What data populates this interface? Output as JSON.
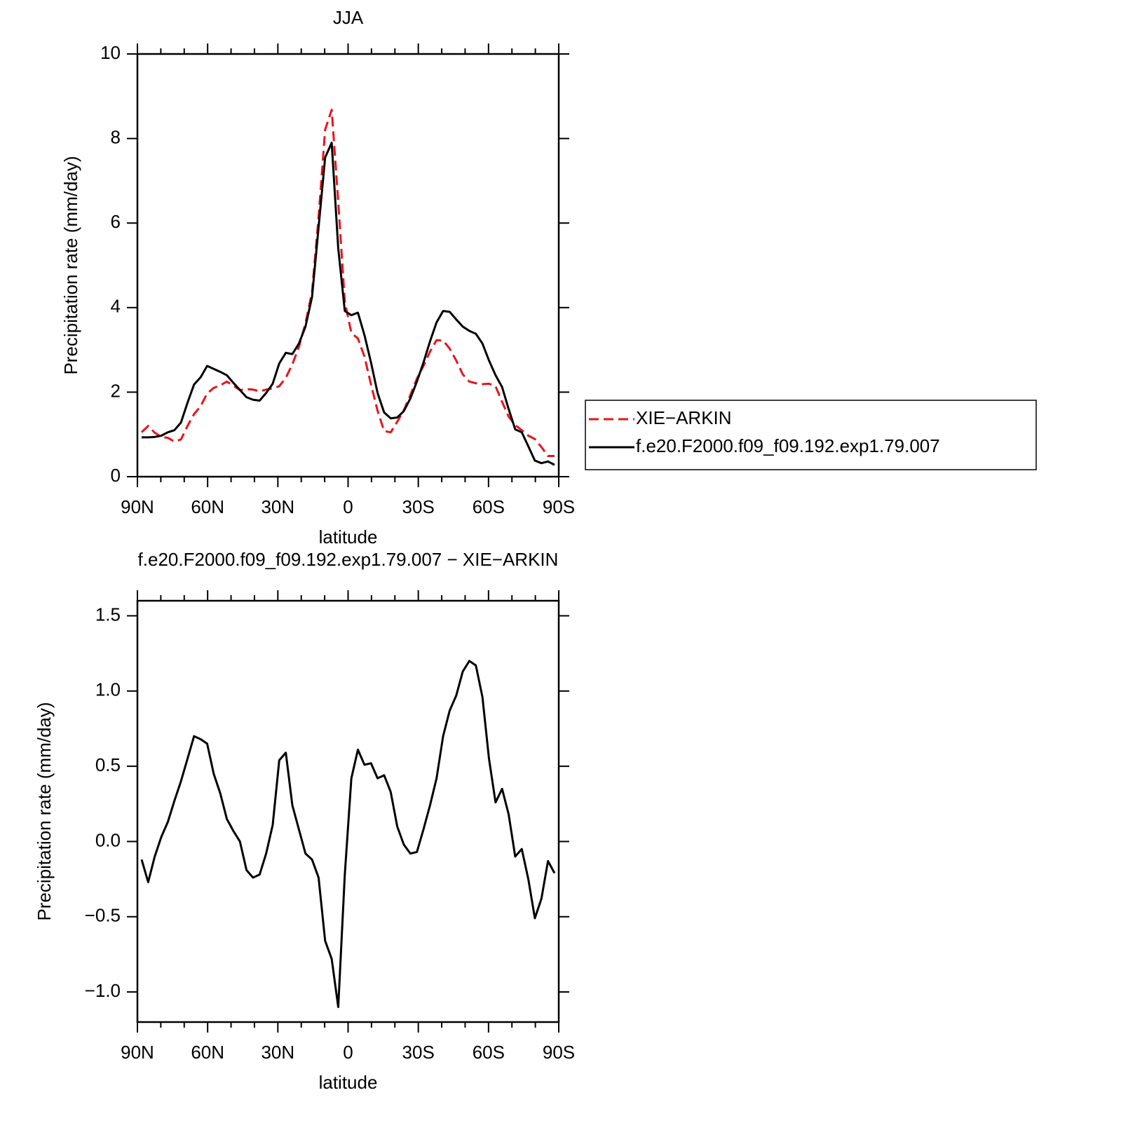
{
  "chart_data": [
    {
      "type": "line",
      "title": "JJA",
      "xlabel": "latitude",
      "ylabel": "Precipitation rate (mm/day)",
      "x": [
        88.2,
        85.4,
        82.6,
        79.8,
        77,
        74.2,
        71.4,
        68.6,
        65.8,
        63,
        60.2,
        57.4,
        54.6,
        51.8,
        49,
        46.2,
        43.4,
        40.6,
        37.8,
        35,
        32.2,
        29.4,
        26.6,
        23.8,
        21,
        18.2,
        15.4,
        12.6,
        9.8,
        7,
        4.2,
        1.4,
        -1.4,
        -4.2,
        -7,
        -9.8,
        -12.6,
        -15.4,
        -18.2,
        -21,
        -23.8,
        -26.6,
        -29.4,
        -32.2,
        -35,
        -37.8,
        -40.6,
        -43.4,
        -46.2,
        -49,
        -51.8,
        -54.6,
        -57.4,
        -60.2,
        -63,
        -65.8,
        -68.6,
        -71.4,
        -74.2,
        -77,
        -79.8,
        -82.6,
        -85.4,
        -88.2
      ],
      "series": [
        {
          "name": "XIE−ARKIN",
          "color": "#e8141a",
          "linestyle": "dashed",
          "values": [
            1.05,
            1.2,
            1.04,
            0.94,
            0.92,
            0.83,
            0.88,
            1.2,
            1.48,
            1.67,
            1.97,
            2.1,
            2.16,
            2.25,
            2.15,
            2.05,
            2.07,
            2.06,
            2.02,
            2.06,
            2.09,
            2.14,
            2.34,
            2.66,
            3.07,
            3.63,
            4.37,
            6.14,
            8.21,
            8.68,
            6.5,
            4.14,
            3.4,
            3.27,
            2.84,
            2.18,
            1.56,
            1.08,
            1.05,
            1.3,
            1.57,
            1.93,
            2.32,
            2.62,
            2.96,
            3.23,
            3.22,
            3.03,
            2.75,
            2.42,
            2.25,
            2.21,
            2.19,
            2.2,
            2.14,
            1.77,
            1.42,
            1.22,
            1.1,
            0.97,
            0.89,
            0.7,
            0.49,
            0.49
          ]
        },
        {
          "name": "f.e20.F2000.f09_f09.192.exp1.79.007",
          "color": "#000000",
          "linestyle": "solid",
          "values": [
            0.93,
            0.93,
            0.94,
            0.97,
            1.05,
            1.1,
            1.28,
            1.75,
            2.18,
            2.35,
            2.62,
            2.55,
            2.48,
            2.4,
            2.22,
            2.05,
            1.88,
            1.82,
            1.8,
            1.98,
            2.2,
            2.68,
            2.93,
            2.9,
            3.15,
            3.55,
            4.25,
            5.9,
            7.55,
            7.9,
            5.4,
            3.92,
            3.82,
            3.88,
            3.35,
            2.7,
            1.98,
            1.52,
            1.38,
            1.4,
            1.55,
            1.85,
            2.25,
            2.7,
            3.2,
            3.65,
            3.92,
            3.9,
            3.72,
            3.55,
            3.45,
            3.38,
            3.15,
            2.75,
            2.4,
            2.12,
            1.6,
            1.12,
            1.05,
            0.72,
            0.38,
            0.32,
            0.36,
            0.28
          ]
        }
      ],
      "xlim": [
        90,
        -90
      ],
      "xticks": [
        {
          "value": 90,
          "label": "90N"
        },
        {
          "value": 60,
          "label": "60N"
        },
        {
          "value": 30,
          "label": "30N"
        },
        0,
        {
          "value": -30,
          "label": "30S"
        },
        {
          "value": -60,
          "label": "60S"
        },
        {
          "value": -90,
          "label": "90S"
        }
      ],
      "xminorticks": [
        80,
        70,
        50,
        40,
        20,
        10,
        -10,
        -20,
        -40,
        -50,
        -70,
        -80
      ],
      "ylim": [
        0,
        10
      ],
      "yticks": [
        0,
        2,
        4,
        6,
        8,
        10
      ],
      "legend": "outside-right"
    },
    {
      "type": "line",
      "title": "f.e20.F2000.f09_f09.192.exp1.79.007 − XIE−ARKIN",
      "xlabel": "latitude",
      "ylabel": "Precipitation rate (mm/day)",
      "x": [
        88.2,
        85.4,
        82.6,
        79.8,
        77,
        74.2,
        71.4,
        68.6,
        65.8,
        63,
        60.2,
        57.4,
        54.6,
        51.8,
        49,
        46.2,
        43.4,
        40.6,
        37.8,
        35,
        32.2,
        29.4,
        26.6,
        23.8,
        21,
        18.2,
        15.4,
        12.6,
        9.8,
        7,
        4.2,
        1.4,
        -1.4,
        -4.2,
        -7,
        -9.8,
        -12.6,
        -15.4,
        -18.2,
        -21,
        -23.8,
        -26.6,
        -29.4,
        -32.2,
        -35,
        -37.8,
        -40.6,
        -43.4,
        -46.2,
        -49,
        -51.8,
        -54.6,
        -57.4,
        -60.2,
        -63,
        -65.8,
        -68.6,
        -71.4,
        -74.2,
        -77,
        -79.8,
        -82.6,
        -85.4,
        -88.2
      ],
      "series": [
        {
          "color": "#000000",
          "linestyle": "solid",
          "values": [
            -0.12,
            -0.27,
            -0.1,
            0.03,
            0.13,
            0.27,
            0.4,
            0.55,
            0.7,
            0.68,
            0.65,
            0.45,
            0.32,
            0.15,
            0.07,
            0.0,
            -0.19,
            -0.24,
            -0.22,
            -0.08,
            0.11,
            0.54,
            0.59,
            0.24,
            0.08,
            -0.08,
            -0.12,
            -0.24,
            -0.66,
            -0.78,
            -1.1,
            -0.22,
            0.42,
            0.61,
            0.51,
            0.52,
            0.42,
            0.44,
            0.33,
            0.1,
            -0.02,
            -0.08,
            -0.07,
            0.08,
            0.24,
            0.42,
            0.7,
            0.87,
            0.97,
            1.13,
            1.2,
            1.17,
            0.96,
            0.55,
            0.26,
            0.35,
            0.18,
            -0.1,
            -0.05,
            -0.25,
            -0.51,
            -0.38,
            -0.13,
            -0.21
          ]
        }
      ],
      "xlim": [
        90,
        -90
      ],
      "xticks": [
        {
          "value": 90,
          "label": "90N"
        },
        {
          "value": 60,
          "label": "60N"
        },
        {
          "value": 30,
          "label": "30N"
        },
        0,
        {
          "value": -30,
          "label": "30S"
        },
        {
          "value": -60,
          "label": "60S"
        },
        {
          "value": -90,
          "label": "90S"
        }
      ],
      "xminorticks": [
        80,
        70,
        50,
        40,
        20,
        10,
        -10,
        -20,
        -40,
        -50,
        -70,
        -80
      ],
      "ylim": [
        -1.2,
        1.6
      ],
      "yticks": [
        1.5,
        {
          "value": 1,
          "label": "1.0"
        },
        0.5,
        {
          "value": 0,
          "label": "0.0"
        },
        {
          "value": -0.5,
          "label": "−0.5"
        },
        {
          "value": -1,
          "label": "−1.0"
        }
      ]
    }
  ]
}
